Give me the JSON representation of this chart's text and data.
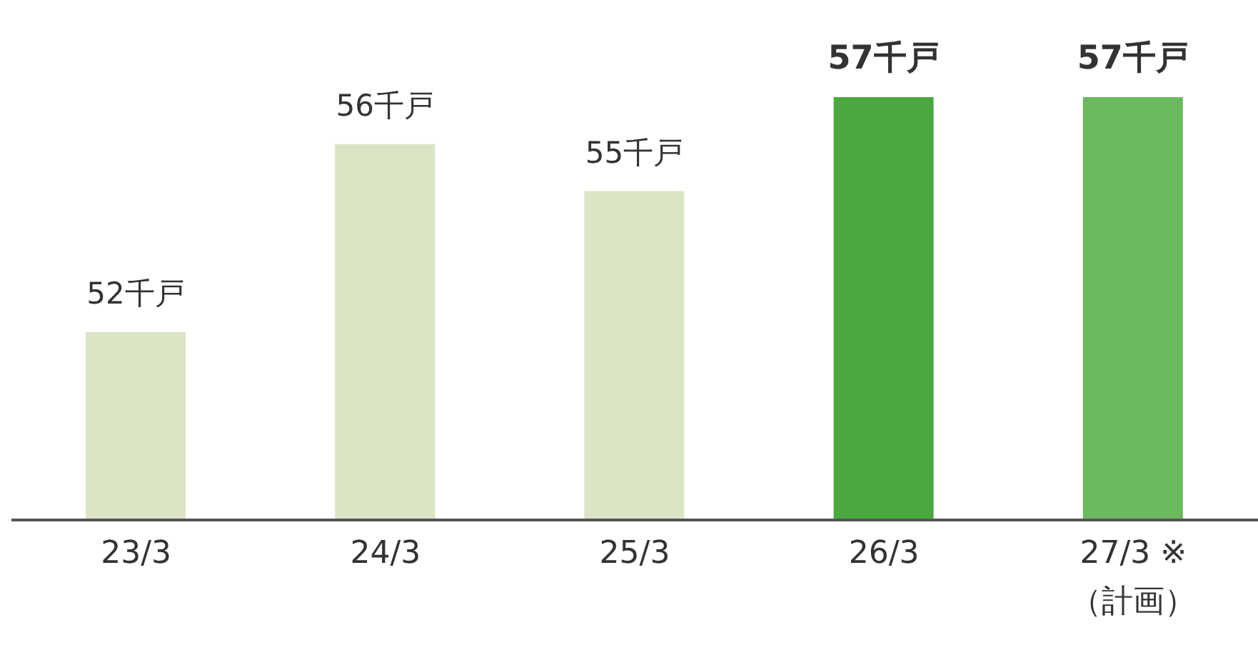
{
  "chart_data": {
    "type": "bar",
    "categories": [
      "23/3",
      "24/3",
      "25/3",
      "26/3",
      "27/3 ※\n（計画）"
    ],
    "values": [
      52,
      56,
      55,
      57,
      57
    ],
    "colors": [
      "#d9e5c5",
      "#d9e5c5",
      "#d9e5c5",
      "#4aa83f",
      "#6bb85f"
    ],
    "value_labels": [
      "52千戸",
      "56千戸",
      "55千戸",
      "57千戸",
      "57千戸"
    ],
    "ylim": [
      48,
      57
    ]
  }
}
